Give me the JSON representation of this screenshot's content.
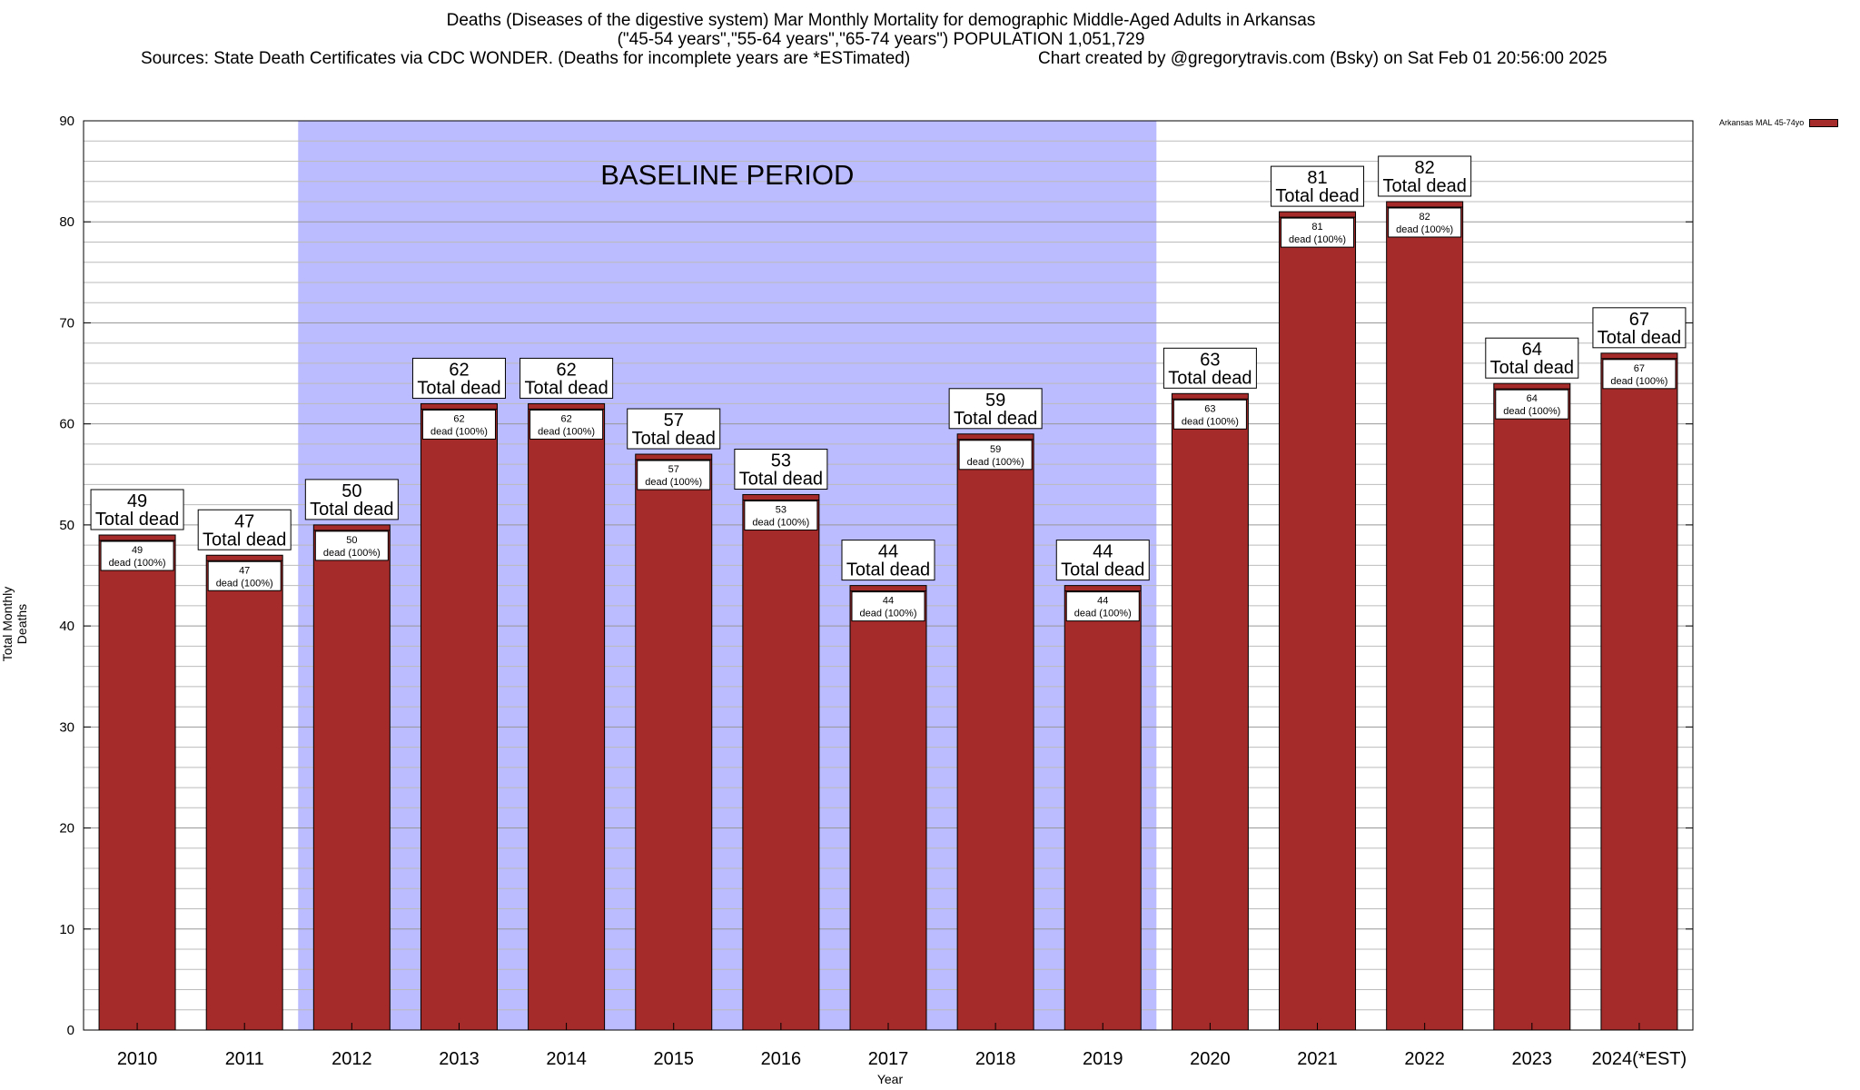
{
  "header": {
    "line1": "Deaths (Diseases of the digestive system) Mar Monthly Mortality for demographic Middle-Aged Adults in Arkansas",
    "line2": "(\"45-54 years\",\"55-64 years\",\"65-74 years\") POPULATION 1,051,729",
    "line3_left": "Sources: State Death Certificates via CDC WONDER. (Deaths for incomplete years are *ESTimated)",
    "line3_right": "Chart created by @gregorytravis.com (Bsky) on Sat Feb 01 20:56:00 2025"
  },
  "chart_data": {
    "type": "bar",
    "xlabel": "Year",
    "ylabel": "Total Monthly Deaths",
    "ylim": [
      0,
      90
    ],
    "yticks": [
      0,
      10,
      20,
      30,
      40,
      50,
      60,
      70,
      80,
      90
    ],
    "grid": true,
    "legend_position": "top-right",
    "categories": [
      "2010",
      "2011",
      "2012",
      "2013",
      "2014",
      "2015",
      "2016",
      "2017",
      "2018",
      "2019",
      "2020",
      "2021",
      "2022",
      "2023",
      "2024(*EST)"
    ],
    "series": [
      {
        "name": "Arkansas MAL 45-74yo",
        "values": [
          49,
          47,
          50,
          62,
          62,
          57,
          53,
          44,
          59,
          44,
          63,
          81,
          82,
          64,
          67
        ],
        "color": "#a52a2a"
      }
    ],
    "top_label_suffix": "Total dead",
    "inner_label_suffix": "dead (100%)",
    "baseline": {
      "label": "BASELINE PERIOD",
      "from": "2012",
      "to": "2019",
      "color": "#bbbbff"
    }
  }
}
